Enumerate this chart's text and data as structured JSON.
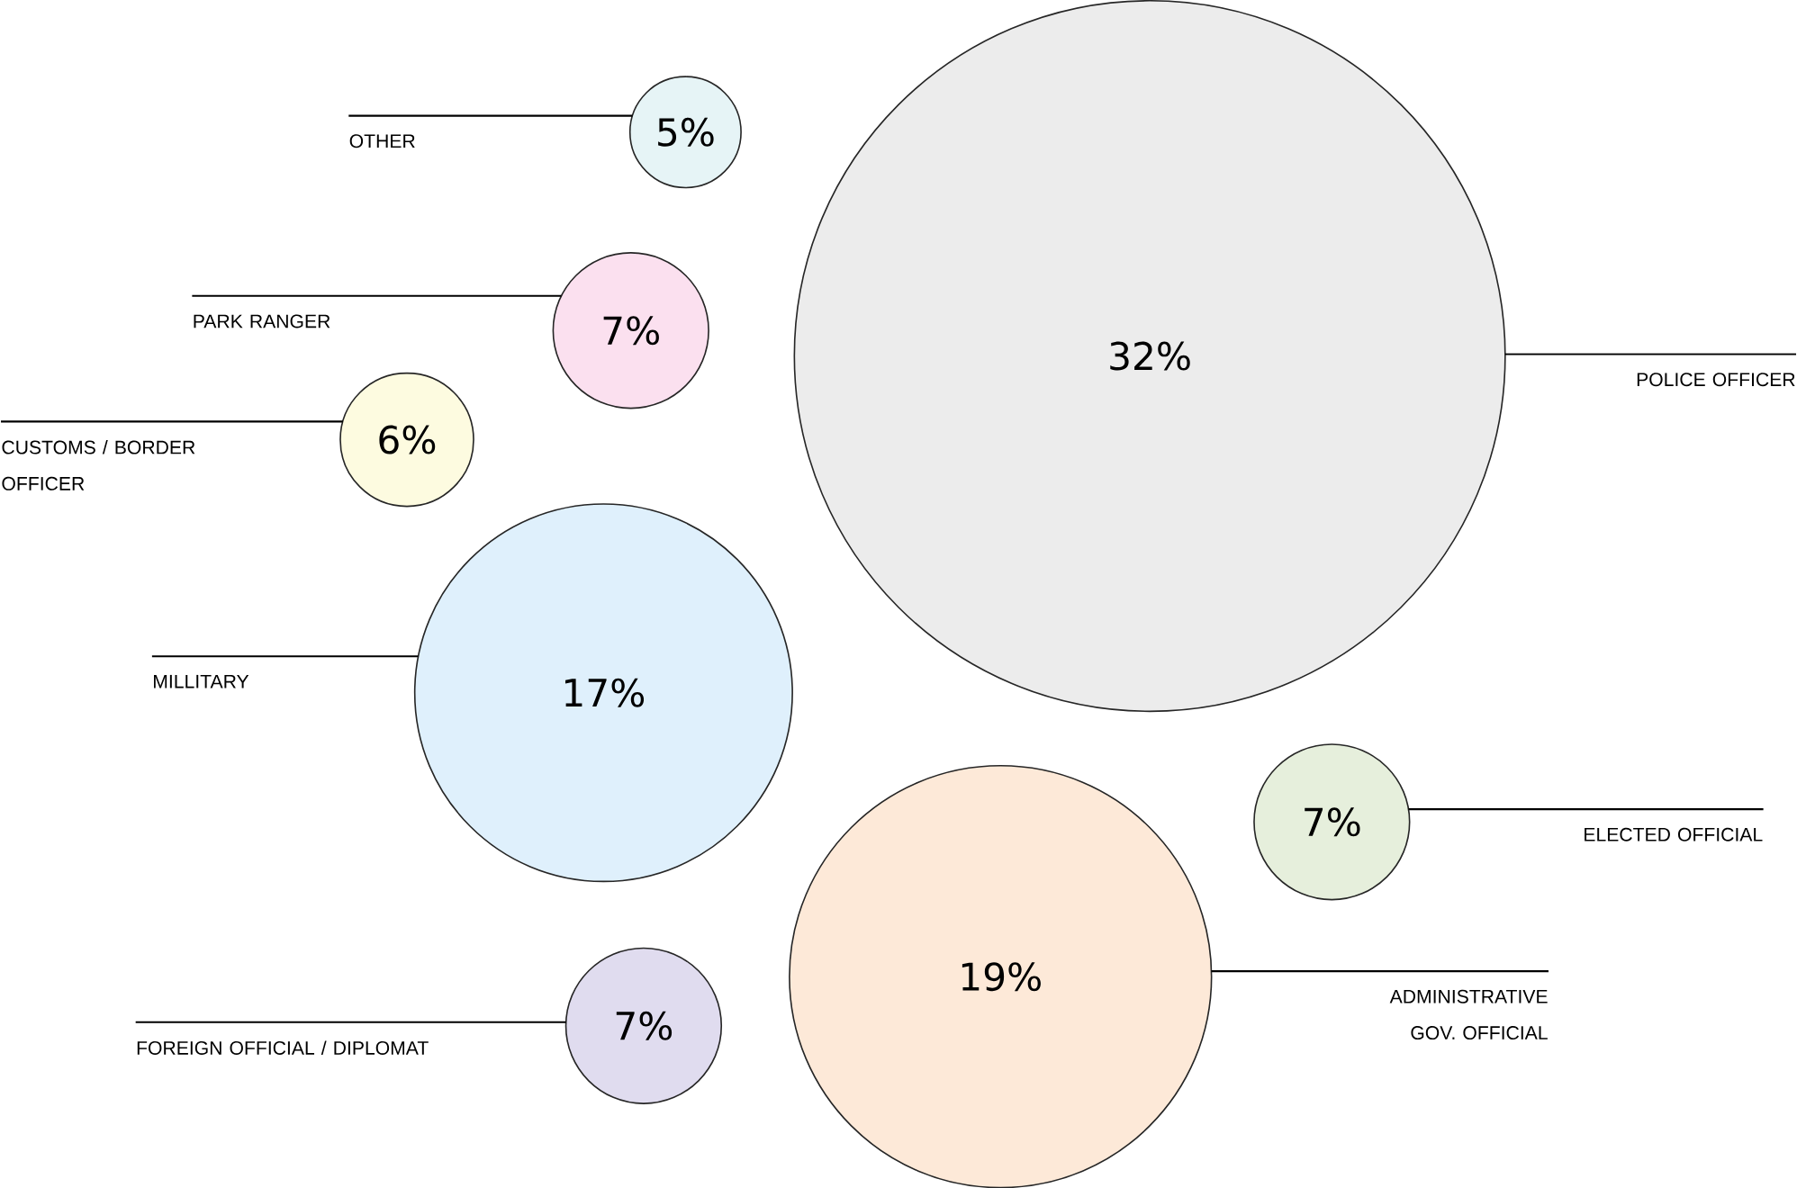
{
  "chart_data": {
    "type": "other",
    "categories": [
      "OTHER",
      "PARK RANGER",
      "CUSTOMS / BORDER OFFICER",
      "MILLITARY",
      "POLICE OFFICER",
      "ELECTED OFFICIAL",
      "ADMINISTRATIVE GOV. OFFICIAL",
      "FOREIGN OFFICIAL / DIPLOMAT"
    ],
    "values": [
      5,
      7,
      6,
      17,
      32,
      7,
      19,
      7
    ],
    "value_labels": [
      "5%",
      "7%",
      "6%",
      "17%",
      "32%",
      "7%",
      "19%",
      "7%"
    ],
    "colors": [
      "#e6f4f6",
      "#fbe0ef",
      "#fdfbe0",
      "#dff0fc",
      "#ececec",
      "#e6efdc",
      "#fde9d8",
      "#e0dcef"
    ]
  }
}
